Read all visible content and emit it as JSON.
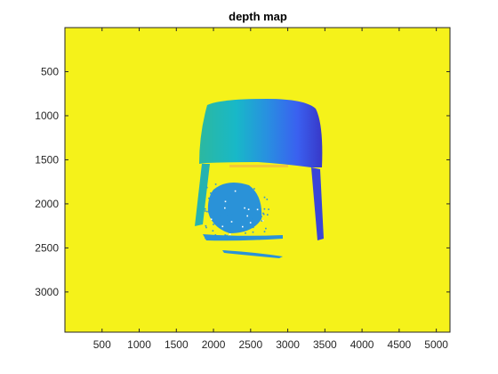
{
  "chart_data": {
    "type": "heatmap",
    "title": "depth map",
    "xlabel": "",
    "ylabel": "",
    "xlim": [
      0,
      5184
    ],
    "ylim": [
      0,
      3456
    ],
    "y_reversed": true,
    "xticks": [
      500,
      1000,
      1500,
      2000,
      2500,
      3000,
      3500,
      4000,
      4500,
      5000
    ],
    "yticks": [
      500,
      1000,
      1500,
      2000,
      2500,
      3000
    ],
    "colormap": "parula",
    "colors": {
      "background": "#F5F21A",
      "gradient": [
        "#2CB8A0",
        "#18B8C8",
        "#2890E0",
        "#3A60F0",
        "#3838C8"
      ],
      "dots": "#2A92D8"
    },
    "grid": false,
    "legend": "none"
  }
}
